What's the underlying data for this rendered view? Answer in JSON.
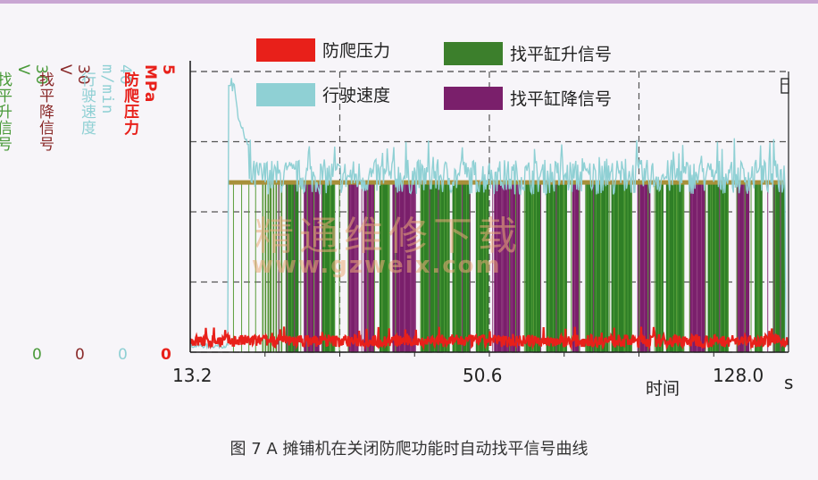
{
  "chart_data": {
    "type": "line",
    "xlabel": "时间",
    "xunit": "s",
    "x_ticks": [
      "13.2",
      "50.6",
      "128.0"
    ],
    "xlim": [
      13.2,
      128.0
    ],
    "axes": [
      {
        "label": "找平升信号",
        "unit": "V",
        "ticks": [
          "0",
          "30"
        ],
        "color": "#4a9a3a"
      },
      {
        "label": "找平降信号",
        "unit": "V",
        "ticks": [
          "0",
          "30"
        ],
        "color": "#8a2a2a"
      },
      {
        "label": "行驶速度",
        "unit": "m/min",
        "ticks": [
          "0",
          "40"
        ],
        "color": "#8fd0d4"
      },
      {
        "label": "防爬压力",
        "unit": "MPa",
        "ticks": [
          "0",
          "5"
        ],
        "color": "#e8201a"
      }
    ],
    "legend_placement": "top",
    "grid": true,
    "series": [
      {
        "name": "防爬压力",
        "color": "#e8201a",
        "typical_value_MPa": 0.2
      },
      {
        "name": "行驶速度",
        "color": "#8fd0d4",
        "start_time_s": 20.5,
        "peak_m_min": 38,
        "steady_m_min": 25,
        "end_time_s": 127.5
      },
      {
        "name": "找平缸升信号",
        "color": "#3c7f2c",
        "level_V": 18
      },
      {
        "name": "找平缸降信号",
        "color": "#7a1f6b",
        "level_V": 18
      }
    ],
    "leveling_pulses": [
      {
        "t0": 27.0,
        "t1": 31.0,
        "type": "up_bundle"
      },
      {
        "t0": 31.5,
        "t1": 34.0,
        "type": "up"
      },
      {
        "t0": 35.0,
        "t1": 38.0,
        "type": "down"
      },
      {
        "t0": 38.5,
        "t1": 41.0,
        "type": "up"
      },
      {
        "t0": 43.5,
        "t1": 45.5,
        "type": "down"
      },
      {
        "t0": 46.5,
        "t1": 48.5,
        "type": "down"
      },
      {
        "t0": 49.5,
        "t1": 51.5,
        "type": "up"
      },
      {
        "t0": 52.0,
        "t1": 56.5,
        "type": "down"
      },
      {
        "t0": 57.5,
        "t1": 63.0,
        "type": "up"
      },
      {
        "t0": 63.5,
        "t1": 67.0,
        "type": "up"
      },
      {
        "t0": 68.0,
        "t1": 70.5,
        "type": "up"
      },
      {
        "t0": 71.5,
        "t1": 76.5,
        "type": "down"
      },
      {
        "t0": 77.5,
        "t1": 80.5,
        "type": "up"
      },
      {
        "t0": 81.5,
        "t1": 85.5,
        "type": "up"
      },
      {
        "t0": 86.5,
        "t1": 88.0,
        "type": "down"
      },
      {
        "t0": 89.0,
        "t1": 93.5,
        "type": "up"
      },
      {
        "t0": 94.0,
        "t1": 98.0,
        "type": "up"
      },
      {
        "t0": 99.0,
        "t1": 101.5,
        "type": "down"
      },
      {
        "t0": 102.5,
        "t1": 104.0,
        "type": "up"
      },
      {
        "t0": 104.5,
        "t1": 108.0,
        "type": "up"
      },
      {
        "t0": 109.0,
        "t1": 112.0,
        "type": "down"
      },
      {
        "t0": 112.5,
        "t1": 116.5,
        "type": "up"
      },
      {
        "t0": 118.0,
        "t1": 120.5,
        "type": "down"
      },
      {
        "t0": 121.5,
        "t1": 123.0,
        "type": "up"
      },
      {
        "t0": 125.0,
        "t1": 127.3,
        "type": "up"
      }
    ]
  },
  "caption": "图 7   A 摊铺机在关闭防爬功能时自动找平信号曲线",
  "watermark": {
    "line1": "精通维修下载",
    "line2": "www.gzweix.com"
  }
}
